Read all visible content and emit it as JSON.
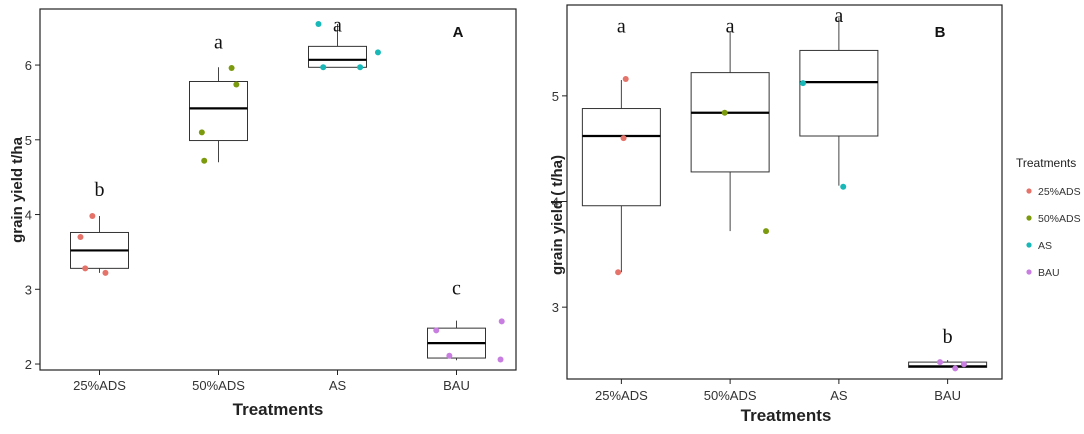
{
  "colors": {
    "25%ADS": "#e5736a",
    "50%ADS": "#7c9a0e",
    "AS": "#18b8b8",
    "BAU": "#c77ee0",
    "axis": "#222222"
  },
  "legend": {
    "title": "Treatments",
    "entries": [
      "25%ADS",
      "50%ADS",
      "AS",
      "BAU"
    ],
    "placement": "right"
  },
  "chart_data": [
    {
      "type": "box",
      "panel_label": "A",
      "xlabel": "Treatments",
      "ylabel": "grain yield t/ha",
      "categories": [
        "25%ADS",
        "50%ADS",
        "AS",
        "BAU"
      ],
      "ylim": [
        1.92,
        6.75
      ],
      "yticks": [
        2,
        3,
        4,
        5,
        6
      ],
      "grid": false,
      "boxes": [
        {
          "category": "25%ADS",
          "min": 3.22,
          "q1": 3.28,
          "median": 3.52,
          "q3": 3.76,
          "max": 3.98
        },
        {
          "category": "50%ADS",
          "min": 4.7,
          "q1": 4.99,
          "median": 5.42,
          "q3": 5.78,
          "max": 5.97
        },
        {
          "category": "AS",
          "min": 5.97,
          "q1": 5.97,
          "median": 6.07,
          "q3": 6.25,
          "max": 6.55
        },
        {
          "category": "BAU",
          "min": 2.05,
          "q1": 2.08,
          "median": 2.28,
          "q3": 2.48,
          "max": 2.58
        }
      ],
      "points": [
        {
          "category": "25%ADS",
          "values": [
            3.7,
            3.98,
            3.28,
            3.22
          ],
          "offsets": [
            -0.16,
            -0.06,
            -0.12,
            0.05
          ]
        },
        {
          "category": "50%ADS",
          "values": [
            5.1,
            4.72,
            5.96,
            5.74
          ],
          "offsets": [
            -0.14,
            -0.12,
            0.11,
            0.15
          ]
        },
        {
          "category": "AS",
          "values": [
            6.55,
            5.97,
            5.97,
            6.17
          ],
          "offsets": [
            -0.16,
            -0.12,
            0.19,
            0.34
          ]
        },
        {
          "category": "BAU",
          "values": [
            2.45,
            2.11,
            2.57,
            2.06
          ],
          "offsets": [
            -0.17,
            -0.06,
            0.38,
            0.37
          ]
        }
      ],
      "letters": [
        {
          "category": "25%ADS",
          "text": "b",
          "y": 4.25
        },
        {
          "category": "50%ADS",
          "text": "a",
          "y": 6.22
        },
        {
          "category": "AS",
          "text": "a",
          "y": 6.45
        },
        {
          "category": "BAU",
          "text": "c",
          "y": 2.93
        }
      ]
    },
    {
      "type": "box",
      "panel_label": "B",
      "xlabel": "Treatments",
      "ylabel": "grain yield ( t/ha)",
      "categories": [
        "25%ADS",
        "50%ADS",
        "AS",
        "BAU"
      ],
      "ylim": [
        2.32,
        5.86
      ],
      "yticks": [
        3,
        4,
        5
      ],
      "grid": false,
      "boxes": [
        {
          "category": "25%ADS",
          "min": 3.33,
          "q1": 3.96,
          "median": 4.62,
          "q3": 4.88,
          "max": 5.15
        },
        {
          "category": "50%ADS",
          "min": 3.72,
          "q1": 4.28,
          "median": 4.84,
          "q3": 5.22,
          "max": 5.61
        },
        {
          "category": "AS",
          "min": 4.15,
          "q1": 4.62,
          "median": 5.13,
          "q3": 5.43,
          "max": 5.74
        },
        {
          "category": "BAU",
          "min": 2.43,
          "q1": 2.43,
          "median": 2.44,
          "q3": 2.48,
          "max": 2.5
        }
      ],
      "points": [
        {
          "category": "25%ADS",
          "values": [
            5.16,
            4.6,
            3.33
          ],
          "offsets": [
            0.04,
            0.02,
            -0.03
          ]
        },
        {
          "category": "50%ADS",
          "values": [
            4.84,
            3.72
          ],
          "offsets": [
            -0.05,
            0.33
          ]
        },
        {
          "category": "AS",
          "values": [
            5.12,
            4.14
          ],
          "offsets": [
            -0.33,
            0.04
          ]
        },
        {
          "category": "BAU",
          "values": [
            2.48,
            2.46,
            2.42
          ],
          "offsets": [
            -0.07,
            0.15,
            0.07
          ]
        }
      ],
      "letters": [
        {
          "category": "25%ADS",
          "text": "a",
          "y": 5.6
        },
        {
          "category": "50%ADS",
          "text": "a",
          "y": 5.6
        },
        {
          "category": "AS",
          "text": "a",
          "y": 5.7
        },
        {
          "category": "BAU",
          "text": "b",
          "y": 2.66
        }
      ]
    }
  ]
}
